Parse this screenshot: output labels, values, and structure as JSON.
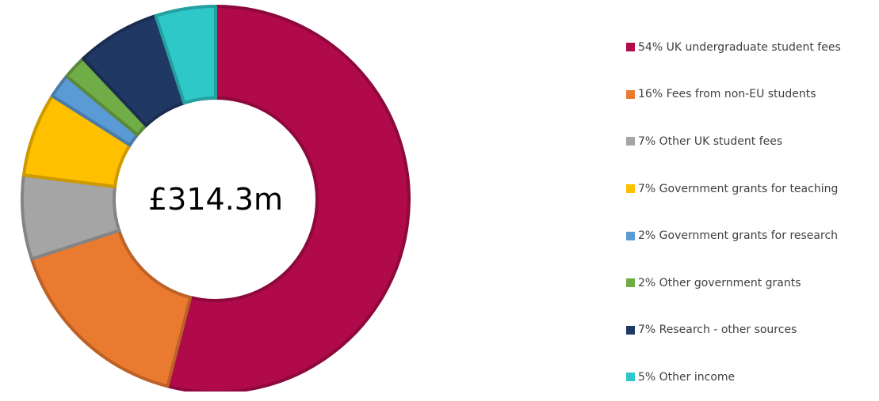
{
  "chart_data": {
    "type": "pie",
    "subtype": "donut",
    "center_label": "£314.3m",
    "slices": [
      {
        "label": "54% UK undergraduate student fees",
        "value": 54,
        "color": "#B00A4A"
      },
      {
        "label": "16% Fees from non-EU students",
        "value": 16,
        "color": "#EB7A31"
      },
      {
        "label": "7% Other UK student fees",
        "value": 7,
        "color": "#A5A5A5"
      },
      {
        "label": "7% Government grants for teaching",
        "value": 7,
        "color": "#FFC000"
      },
      {
        "label": "2% Government grants for research",
        "value": 2,
        "color": "#5B9BD5"
      },
      {
        "label": "2% Other government grants",
        "value": 2,
        "color": "#70AD47"
      },
      {
        "label": "7% Research - other sources",
        "value": 7,
        "color": "#203864"
      },
      {
        "label": "5% Other income",
        "value": 5,
        "color": "#2EC8C8"
      }
    ],
    "legend_position": "right"
  }
}
